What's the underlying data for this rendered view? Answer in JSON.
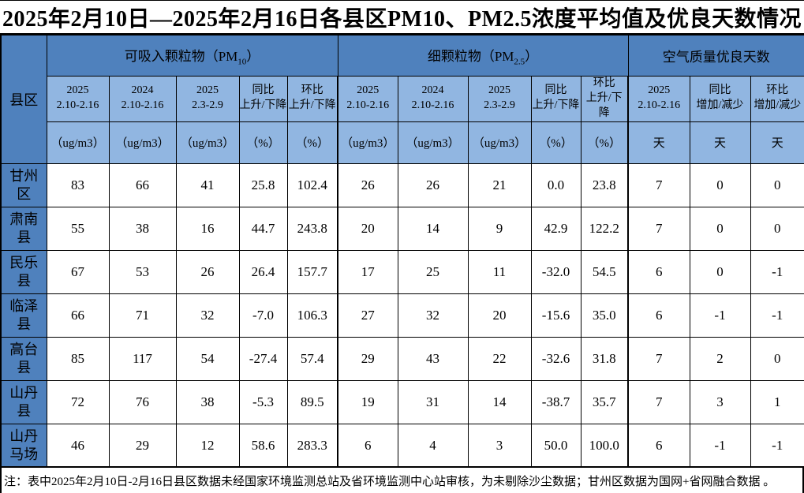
{
  "title": "2025年2月10日—2025年2月16日各县区PM10、PM2.5浓度平均值及优良天数情况",
  "colors": {
    "header_dark_blue": "#4f81bd",
    "header_light_blue": "#91b6e1",
    "border": "#000000",
    "background": "#ffffff"
  },
  "table": {
    "corner": "县区",
    "groups": [
      {
        "pre": "可吸入颗粒物（PM",
        "sub": "10",
        "post": "）"
      },
      {
        "pre": "细颗粒物（PM",
        "sub": "2.5",
        "post": "）"
      },
      {
        "pre": "空气质量优良天数",
        "sub": "",
        "post": ""
      }
    ],
    "columns": [
      {
        "line1": "2025",
        "line2": "2.10-2.16",
        "unit": "（ug/m3）"
      },
      {
        "line1": "2024",
        "line2": "2.10-2.16",
        "unit": "（ug/m3）"
      },
      {
        "line1": "2025",
        "line2": "2.3-2.9",
        "unit": "（ug/m3）"
      },
      {
        "line1": "同比",
        "line2": "上升/下降",
        "unit": "（%）"
      },
      {
        "line1": "环比",
        "line2": "上升/下降",
        "unit": "（%）"
      },
      {
        "line1": "2025",
        "line2": "2.10-2.16",
        "unit": "（ug/m3）"
      },
      {
        "line1": "2024",
        "line2": "2.10-2.16",
        "unit": "（ug/m3）"
      },
      {
        "line1": "2025",
        "line2": "2.3-2.9",
        "unit": "（ug/m3）"
      },
      {
        "line1": "同比",
        "line2": "上升/下降",
        "unit": "（%）"
      },
      {
        "line1": "环比",
        "line2": "上升/下降",
        "unit": "（%）"
      },
      {
        "line1": "2025",
        "line2": "2.10-2.16",
        "unit": "天"
      },
      {
        "line1": "同比",
        "line2": "增加/减少",
        "unit": "天"
      },
      {
        "line1": "环比",
        "line2": "增加/减少",
        "unit": "天"
      }
    ],
    "rows": [
      {
        "name": "甘州区",
        "values": [
          "83",
          "66",
          "41",
          "25.8",
          "102.4",
          "26",
          "26",
          "21",
          "0.0",
          "23.8",
          "7",
          "0",
          "0"
        ]
      },
      {
        "name": "肃南县",
        "values": [
          "55",
          "38",
          "16",
          "44.7",
          "243.8",
          "20",
          "14",
          "9",
          "42.9",
          "122.2",
          "7",
          "0",
          "0"
        ]
      },
      {
        "name": "民乐县",
        "values": [
          "67",
          "53",
          "26",
          "26.4",
          "157.7",
          "17",
          "25",
          "11",
          "-32.0",
          "54.5",
          "6",
          "0",
          "-1"
        ]
      },
      {
        "name": "临泽县",
        "values": [
          "66",
          "71",
          "32",
          "-7.0",
          "106.3",
          "27",
          "32",
          "20",
          "-15.6",
          "35.0",
          "6",
          "-1",
          "-1"
        ]
      },
      {
        "name": "高台县",
        "values": [
          "85",
          "117",
          "54",
          "-27.4",
          "57.4",
          "29",
          "43",
          "22",
          "-32.6",
          "31.8",
          "7",
          "2",
          "0"
        ]
      },
      {
        "name": "山丹县",
        "values": [
          "72",
          "76",
          "38",
          "-5.3",
          "89.5",
          "19",
          "31",
          "14",
          "-38.7",
          "35.7",
          "7",
          "3",
          "1"
        ]
      },
      {
        "name": "山丹马场",
        "values": [
          "46",
          "29",
          "12",
          "58.6",
          "283.3",
          "6",
          "4",
          "3",
          "50.0",
          "100.0",
          "6",
          "-1",
          "-1"
        ]
      }
    ]
  },
  "note": "注：表中2025年2月10日-2月16日县区数据未经国家环境监测总站及省环境监测中心站审核，为未剔除沙尘数据；甘州区数据为国网+省网融合数据 。"
}
